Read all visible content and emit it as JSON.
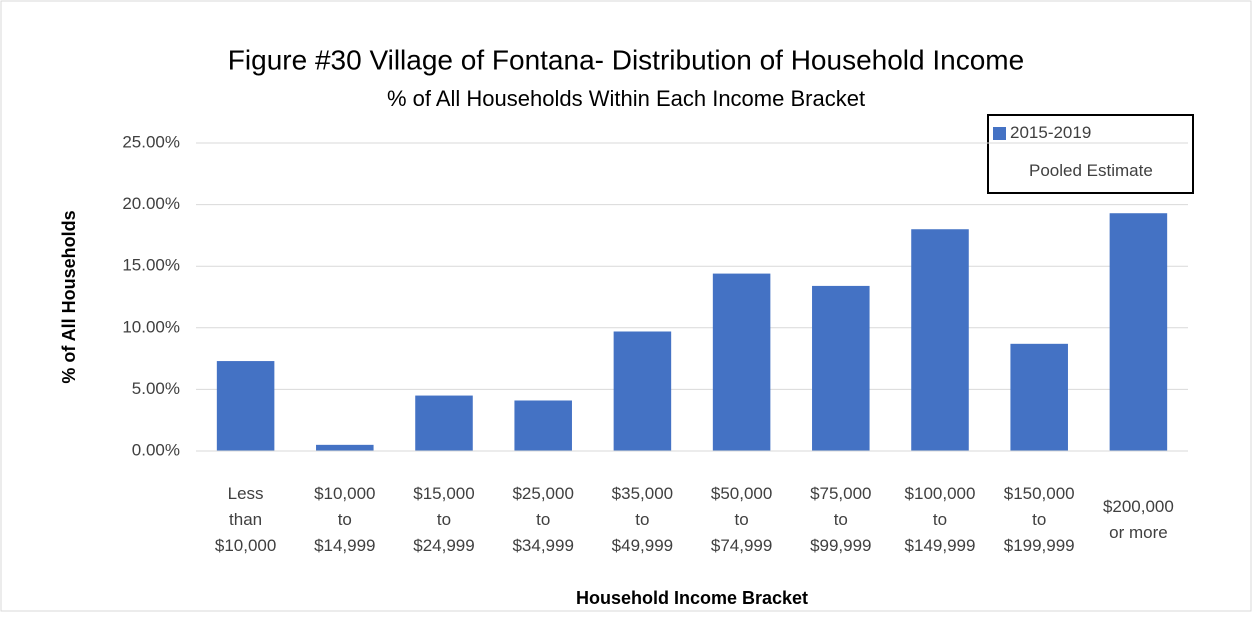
{
  "chart_data": {
    "type": "bar",
    "title": "Figure #30 Village of Fontana- Distribution of Household Income",
    "subtitle": "% of All Households Within Each Income Bracket",
    "x_label": "Household Income Bracket",
    "y_label": "% of All Households",
    "categories": [
      "Less\nthan\n$10,000",
      "$10,000\nto\n$14,999",
      "$15,000\nto\n$24,999",
      "$25,000\nto\n$34,999",
      "$35,000\nto\n$49,999",
      "$50,000\nto\n$74,999",
      "$75,000\nto\n$99,999",
      "$100,000\nto\n$149,999",
      "$150,000\nto\n$199,999",
      "$200,000\nor more"
    ],
    "series": [
      {
        "name": "2015-2019\nPooled Estimate",
        "color": "#4472c4",
        "values": [
          7.3,
          0.5,
          4.5,
          4.1,
          9.7,
          14.4,
          13.4,
          18.0,
          8.7,
          19.3
        ]
      }
    ],
    "ylim": [
      0,
      25
    ],
    "yticks": [
      {
        "value": 0,
        "label": "0.00%"
      },
      {
        "value": 5,
        "label": "5.00%"
      },
      {
        "value": 10,
        "label": "10.00%"
      },
      {
        "value": 15,
        "label": "15.00%"
      },
      {
        "value": 20,
        "label": "20.00%"
      },
      {
        "value": 25,
        "label": "25.00%"
      }
    ],
    "grid": true,
    "legend": "upper right"
  }
}
